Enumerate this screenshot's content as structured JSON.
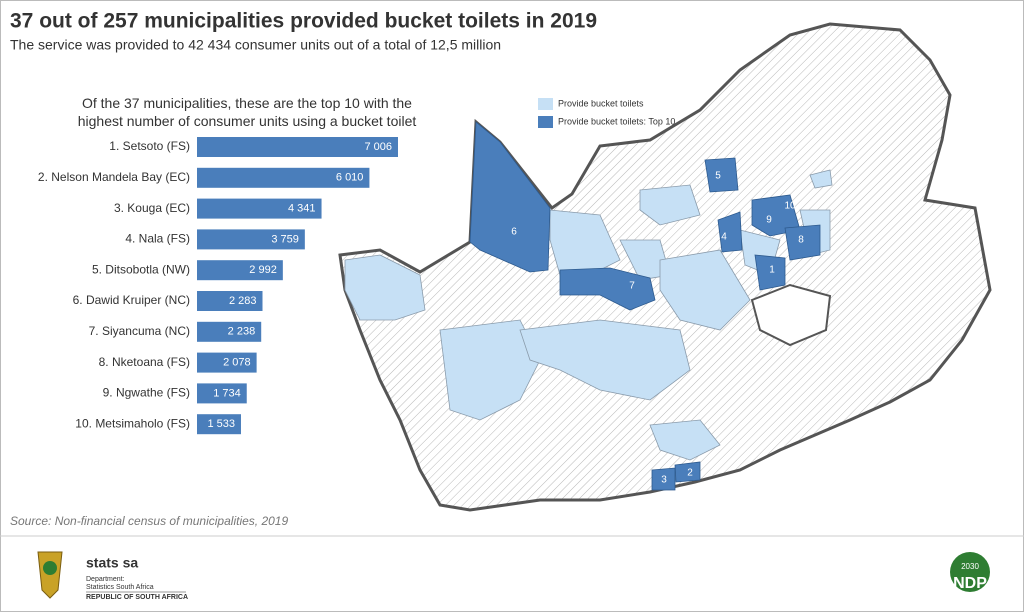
{
  "title": "37 out of 257 municipalities provided bucket toilets in 2019",
  "subtitle": "The service was provided to 42 434 consumer units out of a total of 12,5 million",
  "chart_data": {
    "type": "bar",
    "orientation": "horizontal",
    "title": "Of the 37 municipalities, these are the top 10 with the highest number of consumer units using a bucket toilet",
    "categories": [
      "1. Setsoto (FS)",
      "2. Nelson Mandela Bay (EC)",
      "3. Kouga (EC)",
      "4. Nala (FS)",
      "5. Ditsobotla (NW)",
      "6. Dawid Kruiper (NC)",
      "7. Siyancuma (NC)",
      "8. Nketoana (FS)",
      "9. Ngwathe (FS)",
      "10. Metsimaholo (FS)"
    ],
    "values": [
      7006,
      6010,
      4341,
      3759,
      2992,
      2283,
      2238,
      2078,
      1734,
      1533
    ],
    "value_labels": [
      "7 006",
      "6 010",
      "4 341",
      "3 759",
      "2 992",
      "2 283",
      "2 238",
      "2 078",
      "1 734",
      "1 533"
    ],
    "color": "#4a7ebb"
  },
  "map": {
    "legend": [
      {
        "label": "Provide bucket toilets",
        "color": "#c6e0f5"
      },
      {
        "label": "Provide bucket toilets: Top 10",
        "color": "#4a7ebb"
      }
    ],
    "markers": [
      "1",
      "2",
      "3",
      "4",
      "5",
      "6",
      "7",
      "8",
      "9",
      "10"
    ]
  },
  "source": "Source: Non-financial census of municipalities, 2019",
  "footer": {
    "brand": "stats sa",
    "dept": "Department:",
    "org": "Statistics South Africa",
    "country": "REPUBLIC OF SOUTH AFRICA",
    "ndp": "NDP",
    "ndp_year": "2030"
  }
}
